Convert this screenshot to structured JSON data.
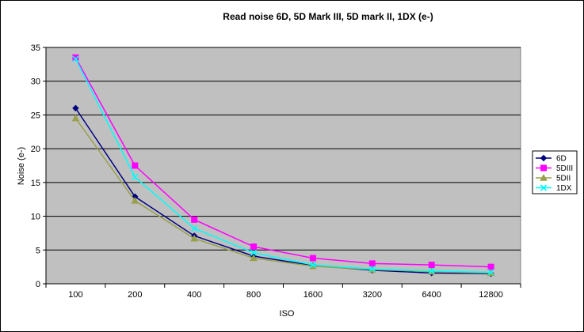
{
  "chart_data": {
    "type": "line",
    "title": "Read noise 6D, 5D Mark III, 5D mark II, 1DX (e-)",
    "xlabel": "ISO",
    "ylabel": "Noise (e-)",
    "categories": [
      "100",
      "200",
      "400",
      "800",
      "1600",
      "3200",
      "6400",
      "12800"
    ],
    "ylim": [
      0,
      35
    ],
    "yticks": [
      0,
      5,
      10,
      15,
      20,
      25,
      30,
      35
    ],
    "grid": "horizontal",
    "plot_background": "#c0c0c0",
    "legend_position": "right",
    "series": [
      {
        "name": "6D",
        "color": "#000080",
        "marker": "diamond",
        "values": [
          26.0,
          12.9,
          7.1,
          4.1,
          2.7,
          2.0,
          1.6,
          1.5
        ]
      },
      {
        "name": "5DIII",
        "color": "#ff00ff",
        "marker": "square",
        "values": [
          33.5,
          17.5,
          9.5,
          5.5,
          3.8,
          3.0,
          2.8,
          2.5
        ]
      },
      {
        "name": "5DII",
        "color": "#99a04a",
        "marker": "triangle",
        "values": [
          24.5,
          12.3,
          6.7,
          3.8,
          2.6,
          2.1,
          1.8,
          1.6
        ]
      },
      {
        "name": "1DX",
        "color": "#00ffff",
        "marker": "x",
        "values": [
          33.3,
          15.8,
          8.2,
          4.6,
          2.8,
          2.2,
          1.9,
          1.7
        ]
      }
    ]
  }
}
